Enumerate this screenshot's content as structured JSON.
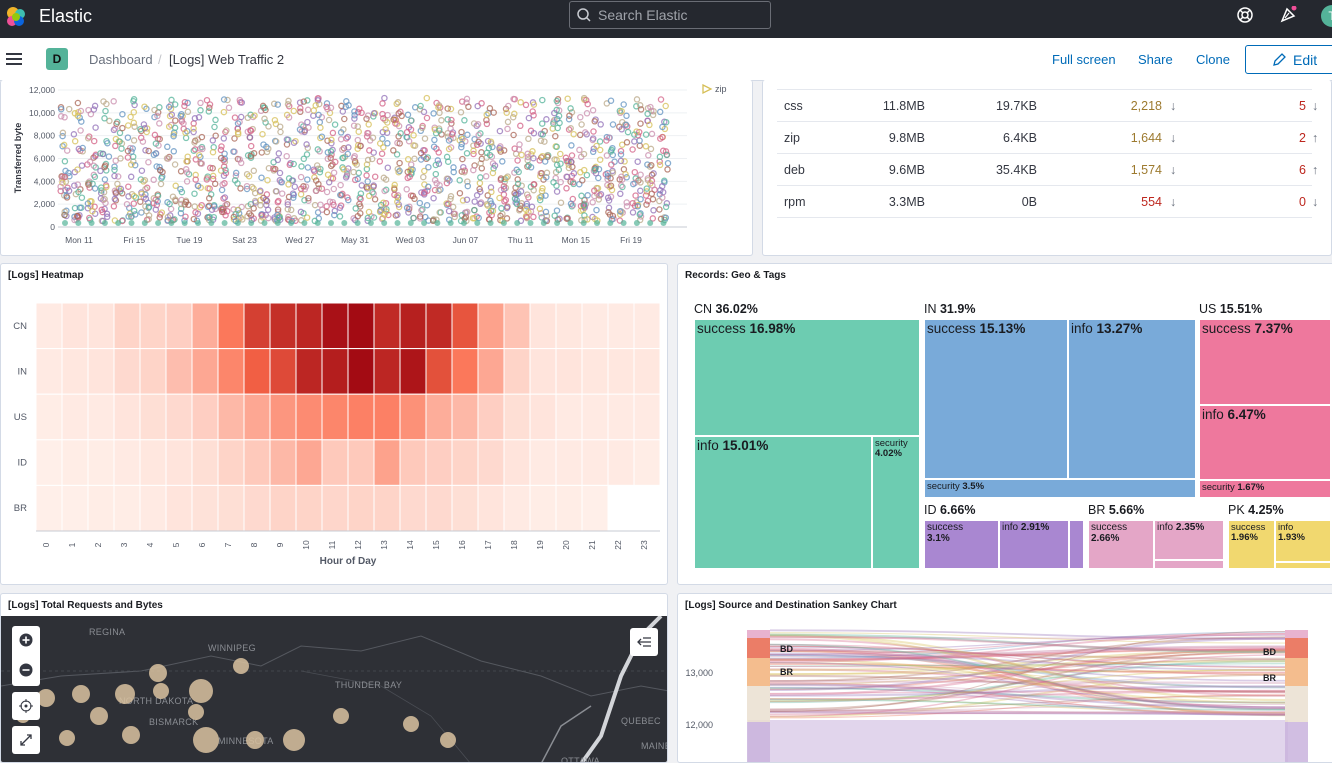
{
  "app": {
    "title": "Elastic",
    "search_placeholder": "Search Elastic",
    "avatar_letter": "T",
    "space_letter": "D"
  },
  "breadcrumb": {
    "root": "Dashboard",
    "separator": "/",
    "current": "[Logs] Web Traffic 2"
  },
  "actions": {
    "full_screen": "Full screen",
    "share": "Share",
    "clone": "Clone",
    "edit": "Edit"
  },
  "scatter": {
    "ylabel": "Transferred byte",
    "yticks": [
      "12,000",
      "10,000",
      "8,000",
      "6,000",
      "4,000",
      "2,000",
      "0"
    ],
    "xticks": [
      "Mon 11",
      "Fri 15",
      "Tue 19",
      "Sat 23",
      "Wed 27",
      "May 31",
      "Wed 03",
      "Jun 07",
      "Thu 11",
      "Mon 15",
      "Fri 19"
    ],
    "legend": "zip"
  },
  "file_table": {
    "rows": [
      {
        "ext": "css",
        "total": "11.8MB",
        "avg": "19.7KB",
        "count": "2,218",
        "count_dir": "down",
        "count_color": "#9d7a2f",
        "errors": "5",
        "errors_dir": "down",
        "errors_color": "#bd271e"
      },
      {
        "ext": "zip",
        "total": "9.8MB",
        "avg": "6.4KB",
        "count": "1,644",
        "count_dir": "down",
        "count_color": "#9d7a2f",
        "errors": "2",
        "errors_dir": "up",
        "errors_color": "#bd271e"
      },
      {
        "ext": "deb",
        "total": "9.6MB",
        "avg": "35.4KB",
        "count": "1,574",
        "count_dir": "down",
        "count_color": "#9d7a2f",
        "errors": "6",
        "errors_dir": "up",
        "errors_color": "#bd271e"
      },
      {
        "ext": "rpm",
        "total": "3.3MB",
        "avg": "0B",
        "count": "554",
        "count_dir": "down",
        "count_color": "#bd271e",
        "errors": "0",
        "errors_dir": "down",
        "errors_color": "#bd271e"
      }
    ]
  },
  "heatmap": {
    "title": "[Logs] Heatmap",
    "xlabel": "Hour of Day",
    "rows": [
      "CN",
      "IN",
      "US",
      "ID",
      "BR"
    ],
    "cols": [
      "0",
      "1",
      "2",
      "3",
      "4",
      "5",
      "6",
      "7",
      "8",
      "9",
      "10",
      "11",
      "12",
      "13",
      "14",
      "15",
      "16",
      "17",
      "18",
      "19",
      "20",
      "21",
      "22",
      "23"
    ],
    "values": [
      [
        0.04,
        0.06,
        0.06,
        0.12,
        0.12,
        0.14,
        0.26,
        0.45,
        0.7,
        0.78,
        0.82,
        0.92,
        0.95,
        0.8,
        0.85,
        0.8,
        0.6,
        0.3,
        0.18,
        0.06,
        0.05,
        0.04,
        0.04,
        0.04
      ],
      [
        0.04,
        0.05,
        0.06,
        0.1,
        0.12,
        0.2,
        0.28,
        0.4,
        0.55,
        0.65,
        0.82,
        0.86,
        0.95,
        0.82,
        0.9,
        0.62,
        0.45,
        0.28,
        0.12,
        0.06,
        0.06,
        0.05,
        0.05,
        0.05
      ],
      [
        0.03,
        0.04,
        0.04,
        0.06,
        0.08,
        0.1,
        0.14,
        0.22,
        0.28,
        0.34,
        0.38,
        0.4,
        0.42,
        0.42,
        0.36,
        0.26,
        0.22,
        0.14,
        0.08,
        0.06,
        0.04,
        0.04,
        0.04,
        0.04
      ],
      [
        0.02,
        0.03,
        0.03,
        0.04,
        0.05,
        0.06,
        0.08,
        0.12,
        0.16,
        0.22,
        0.28,
        0.16,
        0.16,
        0.3,
        0.16,
        0.14,
        0.12,
        0.1,
        0.06,
        0.04,
        0.04,
        0.04,
        0.04,
        0.03
      ],
      [
        0.02,
        0.02,
        0.03,
        0.03,
        0.04,
        0.06,
        0.07,
        0.08,
        0.1,
        0.12,
        0.12,
        0.11,
        0.12,
        0.12,
        0.1,
        0.1,
        0.08,
        0.06,
        0.04,
        0.03,
        0.03,
        0.02,
        null,
        null
      ]
    ]
  },
  "treemap": {
    "title": "Records: Geo & Tags",
    "groups": [
      {
        "name": "CN",
        "pct": "36.02%",
        "color": "#6dccb1",
        "items": [
          {
            "name": "success",
            "pct": "16.98%"
          },
          {
            "name": "info",
            "pct": "15.01%"
          },
          {
            "name": "security",
            "pct": "4.02%"
          }
        ]
      },
      {
        "name": "IN",
        "pct": "31.9%",
        "color": "#79aad9",
        "items": [
          {
            "name": "success",
            "pct": "15.13%"
          },
          {
            "name": "info",
            "pct": "13.27%"
          },
          {
            "name": "security",
            "pct": "3.5%"
          }
        ]
      },
      {
        "name": "US",
        "pct": "15.51%",
        "color": "#ee789d",
        "items": [
          {
            "name": "success",
            "pct": "7.37%"
          },
          {
            "name": "info",
            "pct": "6.47%"
          },
          {
            "name": "security",
            "pct": "1.67%"
          }
        ]
      },
      {
        "name": "ID",
        "pct": "6.66%",
        "color": "#a987d1",
        "items": [
          {
            "name": "success",
            "pct": "3.1%"
          },
          {
            "name": "info",
            "pct": "2.91%"
          }
        ]
      },
      {
        "name": "BR",
        "pct": "5.66%",
        "color": "#e4a6c7",
        "items": [
          {
            "name": "success",
            "pct": "2.66%"
          },
          {
            "name": "info",
            "pct": "2.35%"
          }
        ]
      },
      {
        "name": "PK",
        "pct": "4.25%",
        "color": "#f1d86f",
        "items": [
          {
            "name": "success",
            "pct": "1.96%"
          },
          {
            "name": "info",
            "pct": "1.93%"
          }
        ]
      }
    ]
  },
  "map": {
    "title": "[Logs] Total Requests and Bytes",
    "labels": [
      "REGINA",
      "WINNIPEG",
      "NORTH DAKOTA",
      "BISMARCK",
      "MINNESOTA",
      "THUNDER BAY",
      "QUEBEC",
      "MAINE",
      "OTTAWA"
    ],
    "controls": [
      "zoom-in",
      "zoom-out",
      "geolocate",
      "fullscreen"
    ]
  },
  "sankey": {
    "title": "[Logs] Source and Destination Sankey Chart",
    "yticks": [
      "13,000",
      "12,000"
    ],
    "left_labels": [
      "BD",
      "BR"
    ],
    "right_labels": [
      "BD",
      "BR"
    ]
  }
}
